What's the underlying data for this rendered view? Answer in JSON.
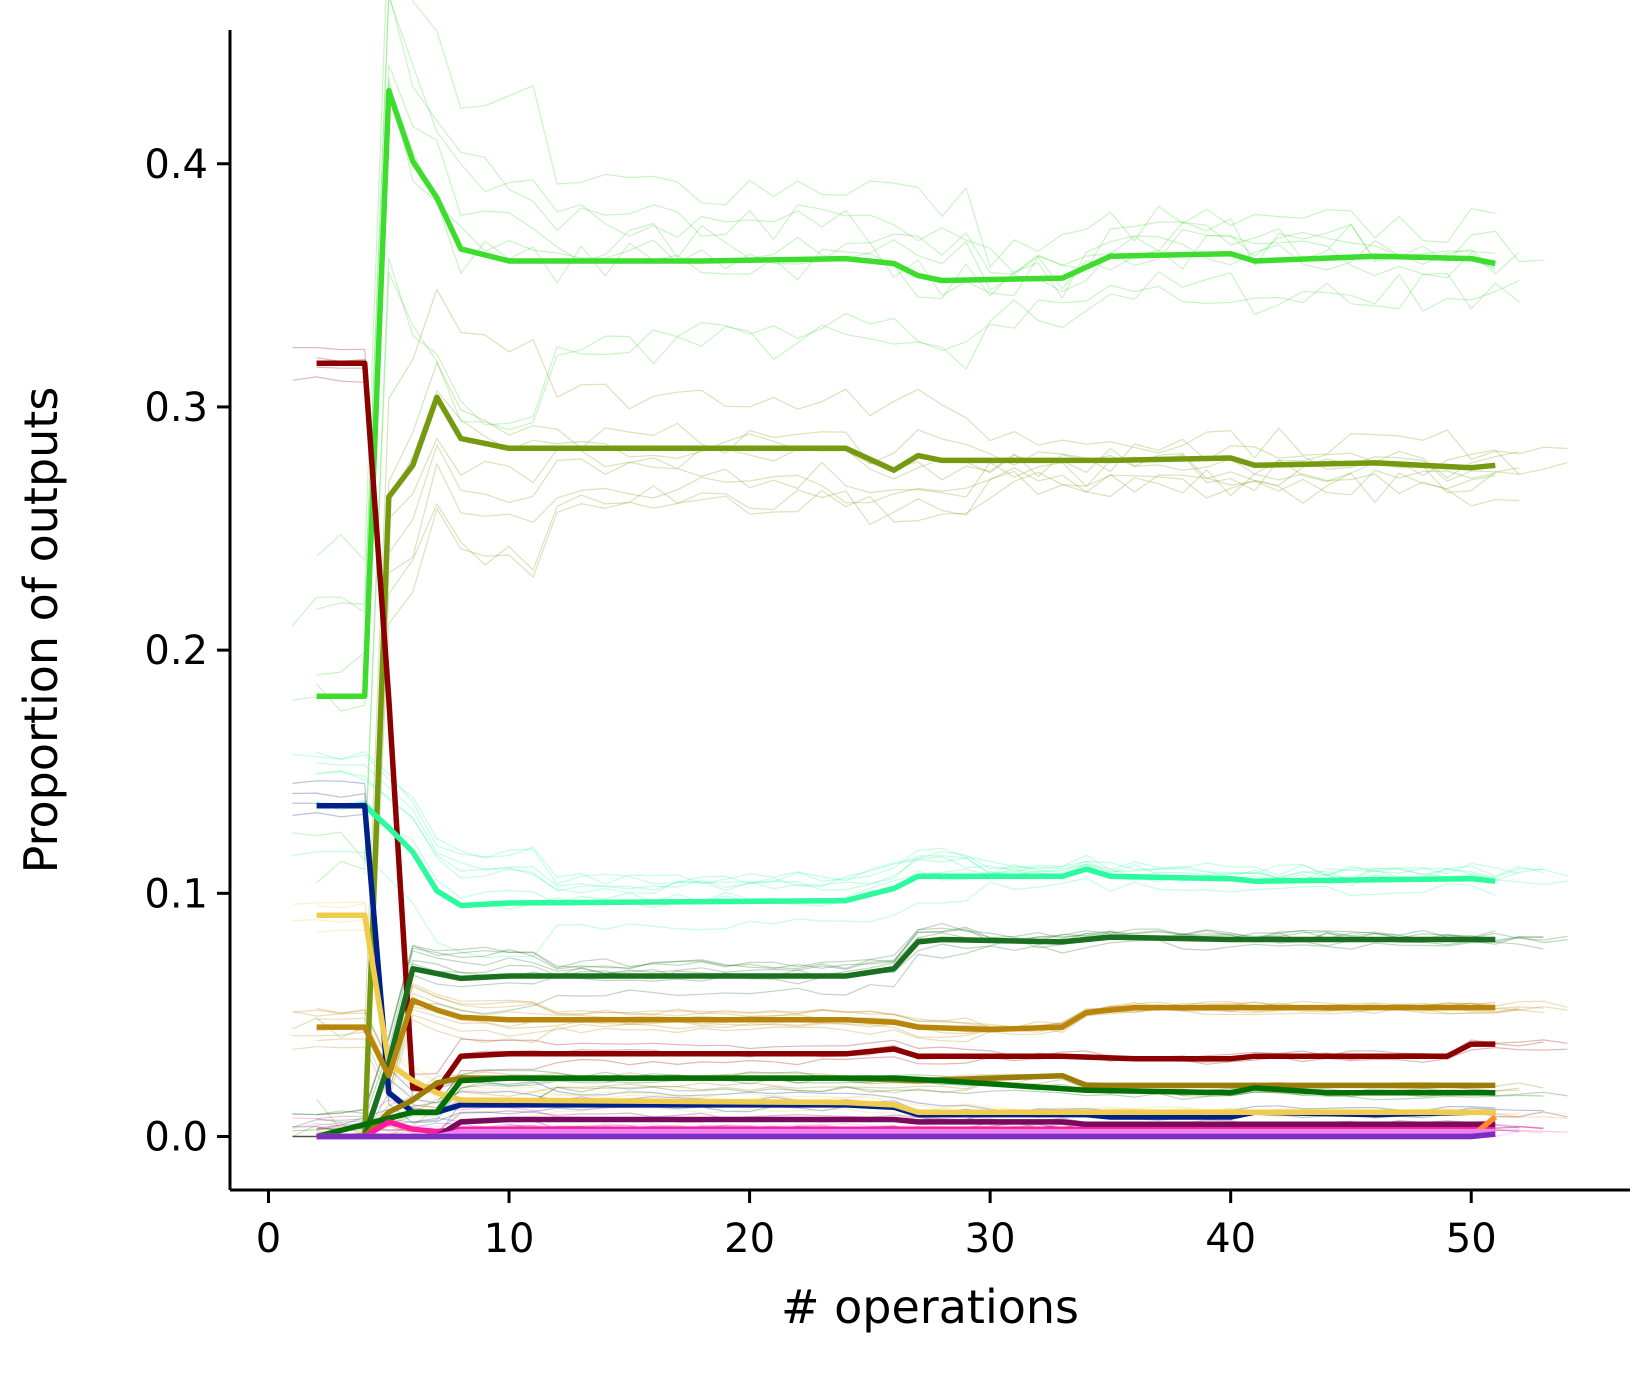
{
  "chart_data": {
    "type": "line",
    "title": "",
    "xlabel": "# operations",
    "ylabel": "Proportion of outputs",
    "xlim": [
      -1.6,
      56.6
    ],
    "ylim": [
      -0.022,
      0.455
    ],
    "x_ticks": [
      0,
      10,
      20,
      30,
      40,
      50
    ],
    "y_ticks": [
      0.0,
      0.1,
      0.2,
      0.3,
      0.4
    ],
    "x_tick_labels": [
      "0",
      "10",
      "20",
      "30",
      "40",
      "50"
    ],
    "y_tick_labels": [
      "0.0",
      "0.1",
      "0.2",
      "0.3",
      "0.4"
    ],
    "grid": false,
    "legend": "none",
    "series": [
      {
        "color": "#3ddc2e",
        "points": [
          [
            2,
            0.181
          ],
          [
            4,
            0.181
          ],
          [
            5,
            0.43
          ],
          [
            6,
            0.401
          ],
          [
            7,
            0.386
          ],
          [
            8,
            0.365
          ],
          [
            10,
            0.36
          ],
          [
            18,
            0.36
          ],
          [
            24,
            0.361
          ],
          [
            26,
            0.359
          ],
          [
            27,
            0.354
          ],
          [
            28,
            0.352
          ],
          [
            33,
            0.353
          ],
          [
            35,
            0.362
          ],
          [
            40,
            0.363
          ],
          [
            41,
            0.36
          ],
          [
            46,
            0.362
          ],
          [
            50,
            0.361
          ],
          [
            51,
            0.359
          ]
        ]
      },
      {
        "color": "#759a10",
        "points": [
          [
            4,
            0.0
          ],
          [
            5,
            0.263
          ],
          [
            6,
            0.276
          ],
          [
            7,
            0.304
          ],
          [
            8,
            0.287
          ],
          [
            10,
            0.283
          ],
          [
            24,
            0.283
          ],
          [
            26,
            0.274
          ],
          [
            27,
            0.28
          ],
          [
            28,
            0.278
          ],
          [
            35,
            0.278
          ],
          [
            40,
            0.279
          ],
          [
            41,
            0.276
          ],
          [
            46,
            0.277
          ],
          [
            50,
            0.275
          ],
          [
            51,
            0.276
          ]
        ]
      },
      {
        "color": "#8b0000",
        "points": [
          [
            2,
            0.318
          ],
          [
            4,
            0.318
          ],
          [
            5,
            0.18
          ],
          [
            6,
            0.02
          ],
          [
            7,
            0.019
          ],
          [
            8,
            0.033
          ],
          [
            10,
            0.034
          ],
          [
            24,
            0.034
          ],
          [
            26,
            0.036
          ],
          [
            27,
            0.033
          ],
          [
            33,
            0.033
          ],
          [
            36,
            0.032
          ],
          [
            40,
            0.032
          ],
          [
            41,
            0.033
          ],
          [
            49,
            0.033
          ],
          [
            50,
            0.038
          ],
          [
            51,
            0.038
          ]
        ]
      },
      {
        "color": "#2bfa9e",
        "points": [
          [
            4,
            0.136
          ],
          [
            5,
            0.127
          ],
          [
            6,
            0.117
          ],
          [
            7,
            0.101
          ],
          [
            8,
            0.095
          ],
          [
            10,
            0.096
          ],
          [
            24,
            0.097
          ],
          [
            26,
            0.102
          ],
          [
            27,
            0.107
          ],
          [
            33,
            0.107
          ],
          [
            34,
            0.11
          ],
          [
            35,
            0.107
          ],
          [
            40,
            0.106
          ],
          [
            41,
            0.105
          ],
          [
            50,
            0.106
          ],
          [
            51,
            0.105
          ]
        ]
      },
      {
        "color": "#00208a",
        "points": [
          [
            2,
            0.136
          ],
          [
            4,
            0.136
          ],
          [
            5,
            0.018
          ],
          [
            6,
            0.01
          ],
          [
            7,
            0.01
          ],
          [
            8,
            0.013
          ],
          [
            10,
            0.013
          ],
          [
            24,
            0.013
          ],
          [
            26,
            0.012
          ],
          [
            27,
            0.009
          ],
          [
            34,
            0.009
          ],
          [
            35,
            0.008
          ],
          [
            40,
            0.008
          ],
          [
            41,
            0.01
          ],
          [
            46,
            0.009
          ],
          [
            50,
            0.01
          ],
          [
            51,
            0.01
          ]
        ]
      },
      {
        "color": "#f0cc4c",
        "points": [
          [
            2,
            0.091
          ],
          [
            4,
            0.091
          ],
          [
            5,
            0.03
          ],
          [
            6,
            0.023
          ],
          [
            7,
            0.018
          ],
          [
            8,
            0.015
          ],
          [
            24,
            0.014
          ],
          [
            26,
            0.013
          ],
          [
            27,
            0.01
          ],
          [
            51,
            0.01
          ]
        ]
      },
      {
        "color": "#1a7020",
        "points": [
          [
            4,
            0.0
          ],
          [
            5,
            0.03
          ],
          [
            6,
            0.069
          ],
          [
            7,
            0.067
          ],
          [
            8,
            0.065
          ],
          [
            10,
            0.066
          ],
          [
            24,
            0.066
          ],
          [
            26,
            0.069
          ],
          [
            27,
            0.08
          ],
          [
            28,
            0.081
          ],
          [
            33,
            0.08
          ],
          [
            35,
            0.082
          ],
          [
            40,
            0.081
          ],
          [
            41,
            0.081
          ],
          [
            51,
            0.081
          ]
        ]
      },
      {
        "color": "#b8860b",
        "points": [
          [
            2,
            0.045
          ],
          [
            4,
            0.045
          ],
          [
            5,
            0.025
          ],
          [
            6,
            0.056
          ],
          [
            7,
            0.052
          ],
          [
            8,
            0.049
          ],
          [
            10,
            0.048
          ],
          [
            24,
            0.048
          ],
          [
            26,
            0.047
          ],
          [
            27,
            0.045
          ],
          [
            30,
            0.044
          ],
          [
            33,
            0.045
          ],
          [
            34,
            0.051
          ],
          [
            36,
            0.053
          ],
          [
            51,
            0.053
          ]
        ]
      },
      {
        "color": "#9a7c08",
        "points": [
          [
            4,
            0.0
          ],
          [
            5,
            0.01
          ],
          [
            6,
            0.015
          ],
          [
            7,
            0.022
          ],
          [
            8,
            0.024
          ],
          [
            24,
            0.024
          ],
          [
            27,
            0.023
          ],
          [
            33,
            0.025
          ],
          [
            34,
            0.021
          ],
          [
            51,
            0.021
          ]
        ]
      },
      {
        "color": "#037003",
        "points": [
          [
            2,
            0.0
          ],
          [
            6,
            0.01
          ],
          [
            7,
            0.01
          ],
          [
            8,
            0.023
          ],
          [
            10,
            0.024
          ],
          [
            24,
            0.024
          ],
          [
            26,
            0.024
          ],
          [
            28,
            0.023
          ],
          [
            34,
            0.019
          ],
          [
            40,
            0.018
          ],
          [
            41,
            0.02
          ],
          [
            44,
            0.018
          ],
          [
            51,
            0.018
          ]
        ]
      },
      {
        "color": "#ff1c9a",
        "points": [
          [
            2,
            0.0
          ],
          [
            4,
            0.0
          ],
          [
            5,
            0.006
          ],
          [
            6,
            0.003
          ],
          [
            7,
            0.002
          ],
          [
            8,
            0.003
          ],
          [
            51,
            0.003
          ]
        ]
      },
      {
        "color": "#7a0a5e",
        "points": [
          [
            2,
            0.0
          ],
          [
            7,
            0.0
          ],
          [
            8,
            0.006
          ],
          [
            10,
            0.007
          ],
          [
            26,
            0.007
          ],
          [
            27,
            0.006
          ],
          [
            33,
            0.006
          ],
          [
            34,
            0.005
          ],
          [
            51,
            0.005
          ]
        ]
      },
      {
        "color": "#ff8a26",
        "points": [
          [
            2,
            0.0
          ],
          [
            50,
            0.0
          ],
          [
            51,
            0.008
          ]
        ]
      },
      {
        "color": "#ee82ee",
        "points": [
          [
            2,
            0.0
          ],
          [
            7,
            0.0
          ],
          [
            8,
            0.002
          ],
          [
            51,
            0.002
          ]
        ]
      },
      {
        "color": "#7b2dc4",
        "points": [
          [
            2,
            0.0
          ],
          [
            50,
            0.0
          ],
          [
            51,
            0.001
          ]
        ]
      }
    ]
  }
}
